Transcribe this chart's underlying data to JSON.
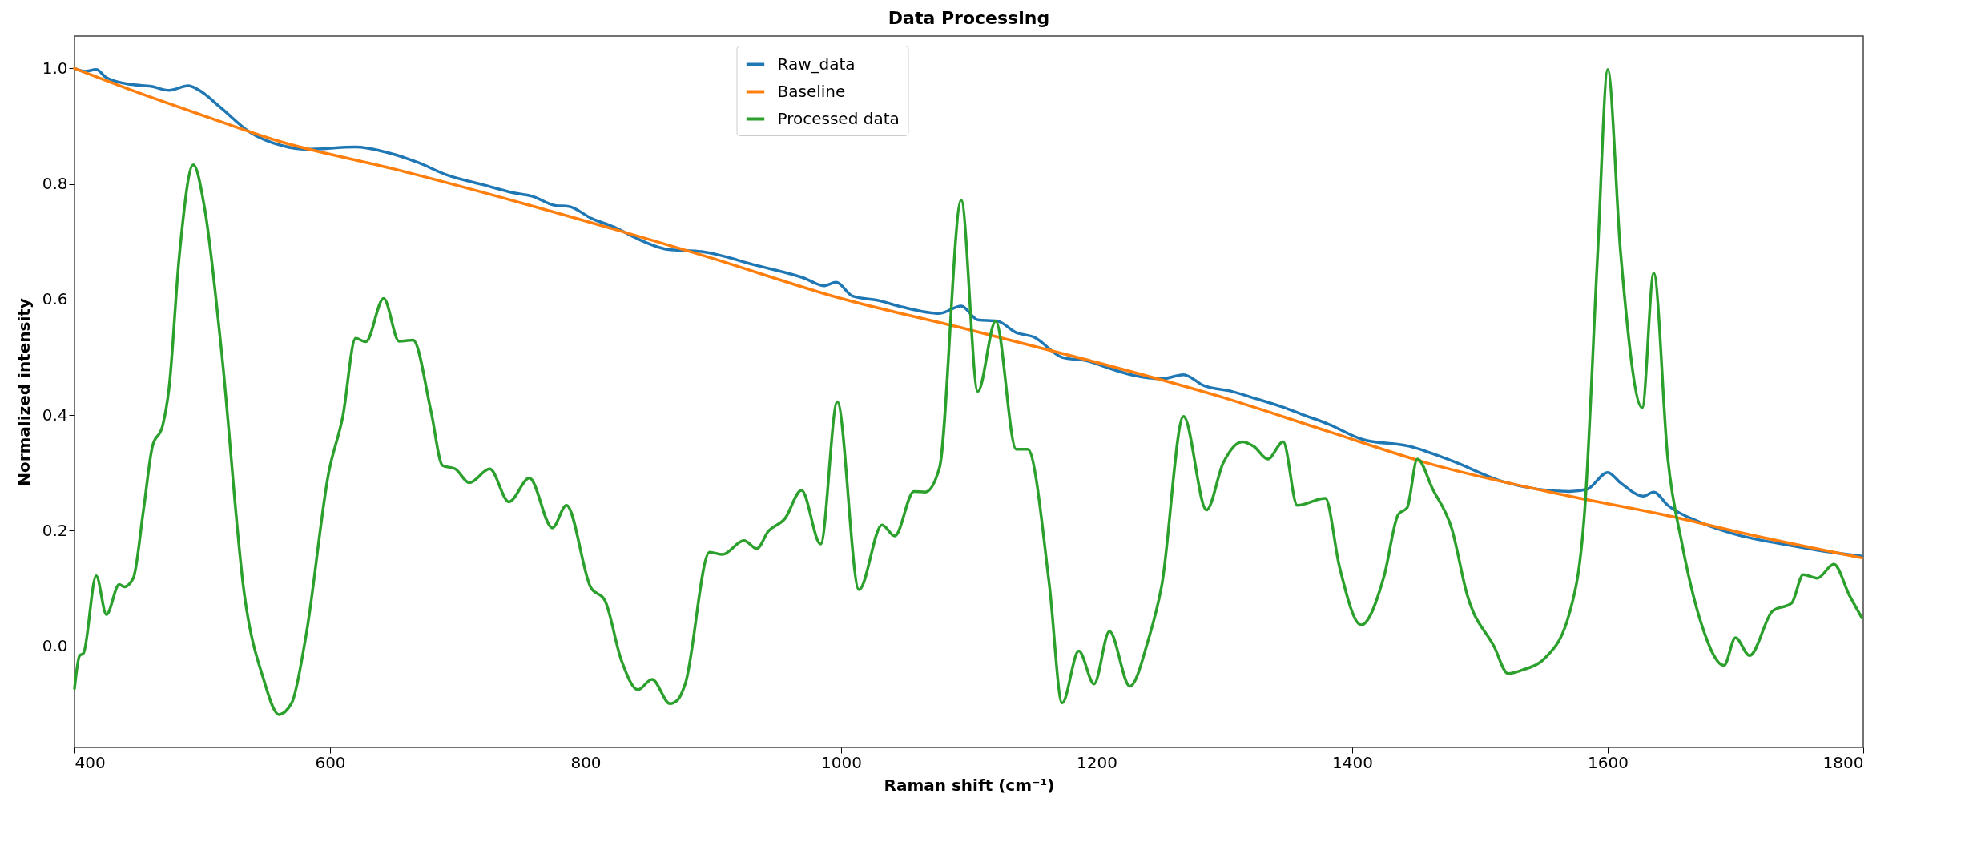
{
  "chart_data": {
    "type": "line",
    "title": "Data Processing",
    "xlabel": "Raman shift (cm⁻¹)",
    "ylabel": "Normalized intensity",
    "xlim": [
      400,
      1800
    ],
    "xticks": [
      400,
      600,
      800,
      1000,
      1200,
      1400,
      1600,
      1800
    ],
    "ylim": [
      -0.175,
      1.056
    ],
    "yticks": [
      {
        "value": 0,
        "label": "0.0"
      },
      {
        "value": 0.2,
        "label": "0.2"
      },
      {
        "value": 0.4,
        "label": "0.4"
      },
      {
        "value": 0.6,
        "label": "0.6"
      },
      {
        "value": 0.8,
        "label": "0.8"
      },
      {
        "value": 1,
        "label": "1.0"
      }
    ],
    "grid": false,
    "legend": "top",
    "marker": "none",
    "line_style": "solid",
    "series": [
      {
        "name": "Raw_data",
        "color": "#1f77b4",
        "x": [
          400,
          408,
          417,
          425,
          445,
          460,
          474,
          489,
          497,
          515,
          537,
          563,
          581,
          620,
          644,
          669,
          691,
          721,
          743,
          758,
          776,
          787,
          805,
          824,
          839,
          864,
          891,
          934,
          970,
          987,
          996,
          1009,
          1030,
          1048,
          1077,
          1094,
          1107,
          1122,
          1137,
          1151,
          1173,
          1192,
          1210,
          1229,
          1251,
          1268,
          1284,
          1306,
          1321,
          1347,
          1360,
          1382,
          1408,
          1445,
          1478,
          1518,
          1570,
          1584,
          1600,
          1610,
          1628,
          1636,
          1647,
          1672,
          1698,
          1742,
          1771,
          1799
        ],
        "values": [
          1.0,
          0.995,
          0.998,
          0.984,
          0.972,
          0.969,
          0.962,
          0.97,
          0.963,
          0.931,
          0.89,
          0.866,
          0.86,
          0.864,
          0.855,
          0.837,
          0.816,
          0.798,
          0.785,
          0.779,
          0.763,
          0.761,
          0.74,
          0.724,
          0.707,
          0.687,
          0.683,
          0.659,
          0.638,
          0.624,
          0.63,
          0.606,
          0.598,
          0.587,
          0.576,
          0.589,
          0.565,
          0.563,
          0.543,
          0.535,
          0.5,
          0.494,
          0.481,
          0.469,
          0.463,
          0.47,
          0.451,
          0.441,
          0.431,
          0.413,
          0.402,
          0.384,
          0.358,
          0.346,
          0.321,
          0.285,
          0.268,
          0.272,
          0.301,
          0.283,
          0.26,
          0.267,
          0.244,
          0.215,
          0.195,
          0.175,
          0.164,
          0.156
        ]
      },
      {
        "name": "Baseline",
        "color": "#ff7f0e",
        "x": [
          400,
          450,
          500,
          560,
          650,
          750,
          891,
          1000,
          1100,
          1192,
          1300,
          1381,
          1459,
          1570,
          1643,
          1716,
          1799
        ],
        "values": [
          1.0,
          0.958,
          0.919,
          0.874,
          0.826,
          0.767,
          0.677,
          0.602,
          0.548,
          0.496,
          0.43,
          0.372,
          0.317,
          0.26,
          0.228,
          0.191,
          0.153
        ]
      },
      {
        "name": "Processed data",
        "color": "#2ca02c",
        "x": [
          400,
          404,
          407,
          417,
          425,
          435,
          439,
          446,
          454,
          461,
          469,
          474,
          482,
          493,
          502,
          515,
          533,
          548,
          560,
          570,
          581,
          599,
          610,
          620,
          628,
          642,
          654,
          665,
          679,
          688,
          698,
          709,
          725,
          740,
          756,
          774,
          785,
          804,
          815,
          828,
          841,
          852,
          866,
          872,
          878,
          897,
          907,
          924,
          934,
          943,
          956,
          969,
          984,
          997,
          1014,
          1032,
          1042,
          1057,
          1066,
          1077,
          1094,
          1107,
          1121,
          1137,
          1146,
          1163,
          1173,
          1186,
          1198,
          1210,
          1226,
          1240,
          1251,
          1268,
          1286,
          1299,
          1314,
          1323,
          1334,
          1346,
          1357,
          1379,
          1390,
          1407,
          1425,
          1436,
          1443,
          1451,
          1463,
          1478,
          1490,
          1511,
          1522,
          1533,
          1551,
          1570,
          1582,
          1592,
          1600,
          1610,
          1627,
          1636,
          1647,
          1658,
          1673,
          1691,
          1700,
          1711,
          1729,
          1744,
          1753,
          1764,
          1777,
          1789,
          1799
        ],
        "values": [
          -0.073,
          -0.016,
          -0.012,
          0.122,
          0.055,
          0.107,
          0.103,
          0.118,
          0.236,
          0.346,
          0.382,
          0.447,
          0.675,
          0.833,
          0.756,
          0.512,
          0.089,
          -0.057,
          -0.118,
          -0.098,
          0.016,
          0.301,
          0.398,
          0.533,
          0.527,
          0.602,
          0.528,
          0.53,
          0.407,
          0.313,
          0.307,
          0.283,
          0.307,
          0.25,
          0.291,
          0.205,
          0.244,
          0.102,
          0.08,
          -0.024,
          -0.075,
          -0.057,
          -0.099,
          -0.093,
          -0.065,
          0.163,
          0.159,
          0.183,
          0.169,
          0.199,
          0.221,
          0.27,
          0.177,
          0.423,
          0.098,
          0.21,
          0.191,
          0.268,
          0.267,
          0.309,
          0.772,
          0.441,
          0.563,
          0.341,
          0.341,
          0.106,
          -0.098,
          -0.008,
          -0.065,
          0.026,
          -0.069,
          0.008,
          0.106,
          0.398,
          0.236,
          0.317,
          0.354,
          0.346,
          0.324,
          0.354,
          0.244,
          0.256,
          0.138,
          0.037,
          0.122,
          0.228,
          0.24,
          0.324,
          0.272,
          0.203,
          0.089,
          0.0,
          -0.047,
          -0.041,
          -0.02,
          0.057,
          0.236,
          0.675,
          0.998,
          0.683,
          0.413,
          0.646,
          0.325,
          0.179,
          0.041,
          -0.033,
          0.015,
          -0.016,
          0.061,
          0.075,
          0.124,
          0.118,
          0.142,
          0.089,
          0.049
        ]
      }
    ]
  }
}
